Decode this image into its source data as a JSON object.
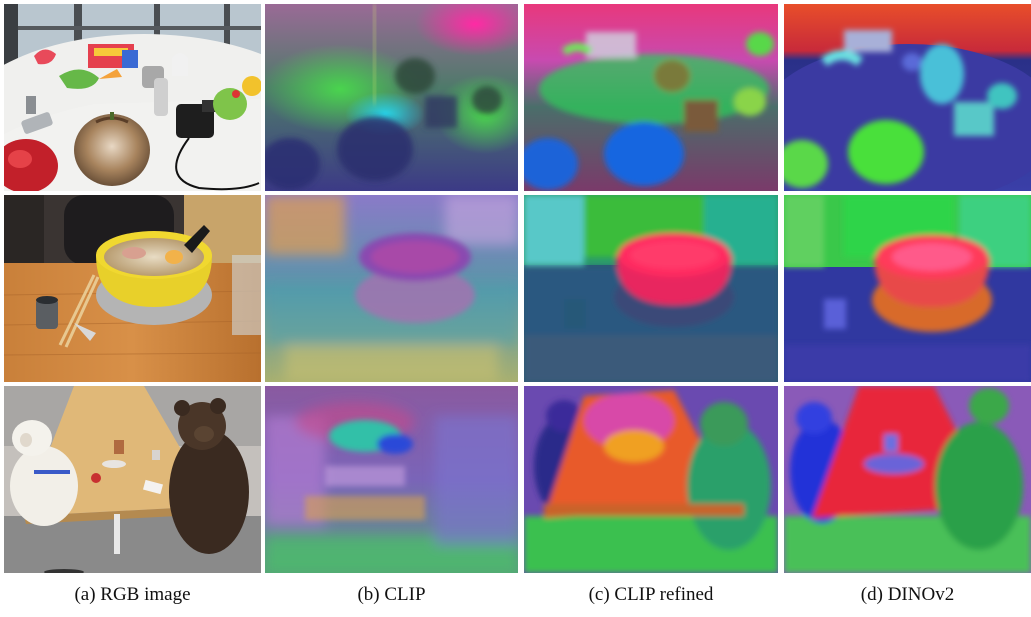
{
  "figure": {
    "columns": [
      {
        "caption": "(a) RGB image"
      },
      {
        "caption": "(b) CLIP"
      },
      {
        "caption": "(c) CLIP refined"
      },
      {
        "caption": "(d) DINOv2"
      }
    ],
    "rows": [
      "toys-on-table",
      "ramen-bowl",
      "plush-animals-dining"
    ]
  }
}
